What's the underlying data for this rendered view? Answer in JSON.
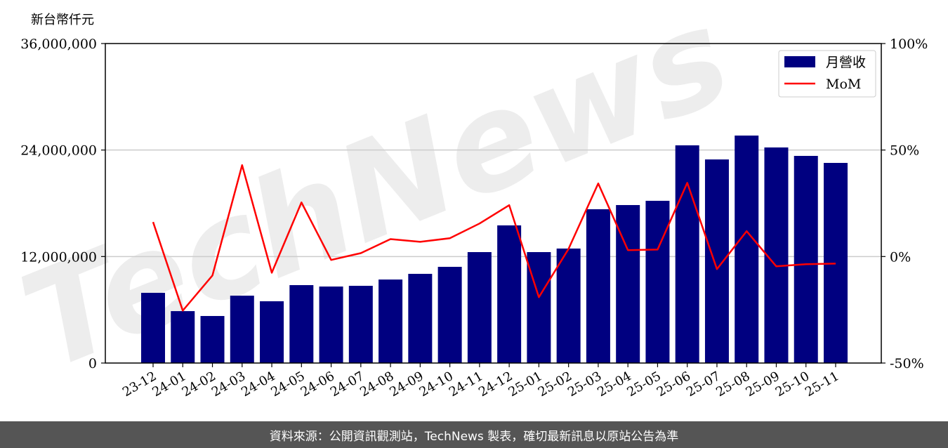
{
  "chart_data": {
    "type": "bar",
    "title": "",
    "ylabel": "新台幣仟元",
    "categories": [
      "23-12",
      "24-01",
      "24-02",
      "24-03",
      "24-04",
      "24-05",
      "24-06",
      "24-07",
      "24-08",
      "24-09",
      "24-10",
      "24-11",
      "24-12",
      "25-01",
      "25-02",
      "25-03",
      "25-04",
      "25-05",
      "25-06",
      "25-07",
      "25-08",
      "25-09",
      "25-10",
      "25-11"
    ],
    "series": [
      {
        "name": "月營收",
        "type": "bar",
        "axis": "left",
        "color": "#000080",
        "values": [
          7910000,
          5850000,
          5300000,
          7590000,
          6960000,
          8780000,
          8620000,
          8700000,
          9410000,
          10050000,
          10840000,
          12500000,
          15510000,
          12500000,
          12900000,
          17330000,
          17800000,
          18280000,
          24530000,
          22940000,
          25630000,
          24290000,
          23340000,
          22550000
        ]
      },
      {
        "name": "MoM",
        "type": "line",
        "axis": "right",
        "color": "#ff0000",
        "values": [
          16.2,
          -25.4,
          -8.9,
          42.9,
          -7.6,
          25.4,
          -1.6,
          1.6,
          8.2,
          6.9,
          8.6,
          15.5,
          24.1,
          -19.1,
          3.6,
          34.3,
          3.0,
          3.3,
          34.6,
          -5.9,
          11.9,
          -4.6,
          -3.6,
          -3.3
        ]
      }
    ],
    "ylim": [
      0,
      36000000
    ],
    "yticks": [
      0,
      12000000,
      24000000,
      36000000
    ],
    "ytick_labels": [
      "0",
      "12,000,000",
      "24,000,000",
      "36,000,000"
    ],
    "y2lim": [
      -50,
      100
    ],
    "y2ticks": [
      -50,
      0,
      50,
      100
    ],
    "y2tick_labels": [
      "-50%",
      "0%",
      "50%",
      "100%"
    ],
    "grid": "horizontal",
    "legend": "top-right"
  },
  "watermark": "TechNews",
  "footer": "資料來源：公開資訊觀測站，TechNews 製表，確切最新訊息以原站公告為準"
}
